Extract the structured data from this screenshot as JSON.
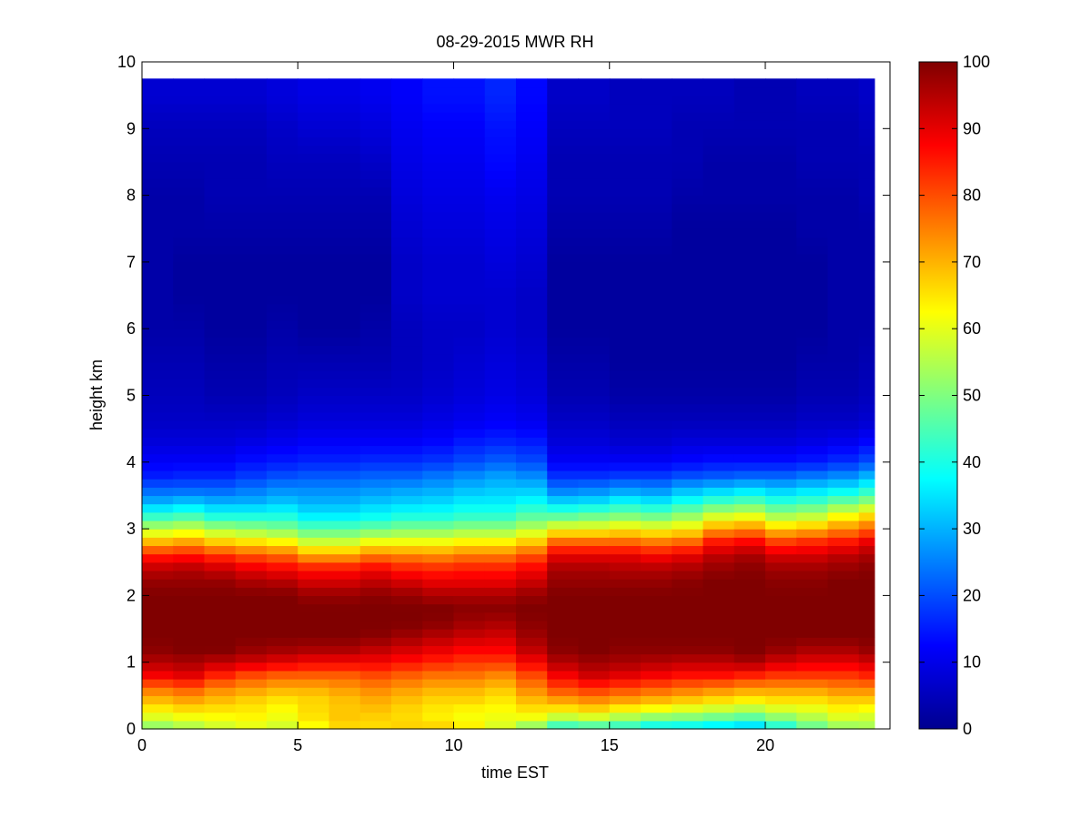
{
  "chart_data": {
    "type": "heatmap",
    "title": "08-29-2015 MWR RH",
    "xlabel": "time EST",
    "ylabel": "height km",
    "xlim": [
      0,
      24
    ],
    "ylim": [
      0,
      10
    ],
    "xticks": [
      0,
      5,
      10,
      15,
      20
    ],
    "yticks": [
      0,
      1,
      2,
      3,
      4,
      5,
      6,
      7,
      8,
      9,
      10
    ],
    "x_extent": [
      0,
      23.5
    ],
    "y_extent": [
      0,
      9.75
    ],
    "x_step": 1,
    "colormap": "jet",
    "colorbar": {
      "limits": [
        0,
        100
      ],
      "ticks": [
        0,
        10,
        20,
        30,
        40,
        50,
        60,
        70,
        80,
        90,
        100
      ]
    },
    "profile_heights_km": [
      0.0,
      0.1,
      0.25,
      0.4,
      0.6,
      0.8,
      1.0,
      1.2,
      1.4,
      1.6,
      1.8,
      2.0,
      2.2,
      2.4,
      2.6,
      2.8,
      3.0,
      3.2,
      3.4,
      3.6,
      3.8,
      4.0,
      4.3,
      4.6,
      5.0,
      5.5,
      6.0,
      6.5,
      7.0,
      7.5,
      8.0,
      8.5,
      9.0,
      9.5,
      9.75
    ],
    "profiles": [
      {
        "x": 0,
        "rh": [
          48,
          56,
          62,
          68,
          76,
          88,
          95,
          99,
          100,
          100,
          100,
          100,
          98,
          94,
          85,
          70,
          56,
          42,
          30,
          22,
          15,
          12,
          9,
          7,
          6,
          5,
          4,
          4,
          4,
          4,
          4,
          5,
          6,
          8,
          8
        ]
      },
      {
        "x": 1,
        "rh": [
          52,
          58,
          64,
          70,
          78,
          90,
          96,
          100,
          100,
          100,
          100,
          100,
          98,
          95,
          86,
          72,
          58,
          44,
          32,
          22,
          16,
          12,
          9,
          7,
          6,
          5,
          4,
          3,
          3,
          4,
          4,
          5,
          6,
          8,
          8
        ]
      },
      {
        "x": 2,
        "rh": [
          56,
          60,
          64,
          68,
          74,
          84,
          94,
          100,
          100,
          100,
          100,
          100,
          98,
          93,
          83,
          68,
          54,
          40,
          30,
          22,
          16,
          12,
          9,
          7,
          5,
          4,
          3,
          3,
          3,
          4,
          5,
          5,
          6,
          8,
          8
        ]
      },
      {
        "x": 3,
        "rh": [
          58,
          62,
          64,
          66,
          72,
          80,
          92,
          98,
          100,
          100,
          100,
          100,
          96,
          90,
          80,
          66,
          52,
          40,
          30,
          24,
          18,
          14,
          10,
          7,
          5,
          4,
          3,
          3,
          3,
          4,
          5,
          5,
          6,
          8,
          8
        ]
      },
      {
        "x": 4,
        "rh": [
          56,
          60,
          62,
          64,
          70,
          78,
          90,
          97,
          100,
          100,
          100,
          100,
          95,
          88,
          78,
          64,
          50,
          40,
          32,
          26,
          20,
          15,
          11,
          8,
          6,
          5,
          4,
          3,
          3,
          4,
          5,
          6,
          7,
          9,
          9
        ]
      },
      {
        "x": 5,
        "rh": [
          60,
          64,
          66,
          66,
          70,
          78,
          88,
          96,
          100,
          100,
          100,
          98,
          92,
          86,
          72,
          58,
          46,
          36,
          30,
          26,
          21,
          16,
          12,
          9,
          7,
          5,
          3,
          3,
          3,
          4,
          5,
          6,
          8,
          10,
          10
        ]
      },
      {
        "x": 6,
        "rh": [
          64,
          68,
          68,
          68,
          72,
          78,
          88,
          96,
          100,
          100,
          100,
          98,
          92,
          86,
          72,
          58,
          46,
          36,
          30,
          26,
          21,
          16,
          12,
          9,
          7,
          5,
          3,
          3,
          3,
          4,
          5,
          6,
          8,
          10,
          10
        ]
      },
      {
        "x": 7,
        "rh": [
          66,
          66,
          68,
          70,
          74,
          80,
          88,
          94,
          99,
          100,
          100,
          99,
          94,
          88,
          76,
          62,
          48,
          38,
          32,
          27,
          22,
          17,
          12,
          9,
          7,
          5,
          4,
          3,
          3,
          4,
          5,
          7,
          9,
          11,
          11
        ]
      },
      {
        "x": 8,
        "rh": [
          68,
          66,
          66,
          68,
          72,
          78,
          86,
          92,
          97,
          100,
          100,
          98,
          92,
          85,
          75,
          62,
          50,
          40,
          33,
          28,
          22,
          17,
          12,
          9,
          7,
          6,
          6,
          7,
          7,
          8,
          9,
          10,
          11,
          12,
          12
        ]
      },
      {
        "x": 9,
        "rh": [
          70,
          64,
          64,
          66,
          70,
          76,
          84,
          90,
          95,
          99,
          100,
          96,
          90,
          84,
          74,
          62,
          50,
          40,
          34,
          29,
          24,
          18,
          13,
          10,
          8,
          7,
          7,
          8,
          8,
          9,
          10,
          11,
          12,
          14,
          14
        ]
      },
      {
        "x": 10,
        "rh": [
          66,
          62,
          62,
          66,
          70,
          76,
          82,
          88,
          93,
          97,
          99,
          96,
          90,
          85,
          76,
          64,
          52,
          42,
          36,
          31,
          26,
          20,
          15,
          11,
          9,
          8,
          7,
          8,
          8,
          9,
          10,
          11,
          12,
          14,
          14
        ]
      },
      {
        "x": 11,
        "rh": [
          58,
          60,
          62,
          64,
          68,
          74,
          82,
          88,
          92,
          96,
          99,
          96,
          90,
          85,
          76,
          64,
          52,
          42,
          36,
          32,
          28,
          22,
          16,
          12,
          10,
          9,
          8,
          8,
          9,
          10,
          11,
          13,
          14,
          16,
          16
        ]
      },
      {
        "x": 12,
        "rh": [
          46,
          58,
          64,
          68,
          74,
          80,
          88,
          94,
          97,
          99,
          100,
          98,
          93,
          88,
          80,
          68,
          56,
          46,
          38,
          32,
          26,
          20,
          15,
          11,
          9,
          8,
          7,
          7,
          8,
          9,
          10,
          11,
          12,
          13,
          13
        ]
      },
      {
        "x": 13,
        "rh": [
          36,
          50,
          62,
          70,
          80,
          88,
          95,
          99,
          100,
          100,
          100,
          100,
          98,
          96,
          90,
          78,
          62,
          46,
          34,
          24,
          17,
          12,
          9,
          7,
          5,
          4,
          3,
          3,
          3,
          4,
          5,
          5,
          6,
          7,
          7
        ]
      },
      {
        "x": 14,
        "rh": [
          38,
          52,
          64,
          72,
          82,
          92,
          97,
          100,
          100,
          100,
          100,
          100,
          98,
          96,
          90,
          78,
          62,
          48,
          35,
          25,
          17,
          12,
          9,
          7,
          5,
          4,
          3,
          3,
          3,
          4,
          5,
          5,
          6,
          7,
          7
        ]
      },
      {
        "x": 15,
        "rh": [
          38,
          48,
          60,
          70,
          80,
          90,
          96,
          99,
          100,
          100,
          100,
          100,
          98,
          95,
          90,
          78,
          64,
          50,
          38,
          27,
          18,
          12,
          8,
          6,
          4,
          3,
          3,
          3,
          3,
          4,
          5,
          5,
          6,
          6,
          6
        ]
      },
      {
        "x": 16,
        "rh": [
          34,
          44,
          58,
          68,
          78,
          88,
          95,
          99,
          100,
          100,
          100,
          100,
          98,
          95,
          88,
          76,
          62,
          48,
          36,
          26,
          18,
          12,
          8,
          6,
          4,
          3,
          3,
          3,
          3,
          4,
          5,
          5,
          6,
          6,
          6
        ]
      },
      {
        "x": 17,
        "rh": [
          32,
          44,
          56,
          66,
          76,
          86,
          94,
          99,
          100,
          100,
          100,
          100,
          99,
          96,
          90,
          78,
          64,
          52,
          40,
          30,
          20,
          13,
          9,
          6,
          4,
          3,
          3,
          3,
          3,
          3,
          4,
          5,
          5,
          6,
          6
        ]
      },
      {
        "x": 18,
        "rh": [
          30,
          42,
          54,
          64,
          74,
          86,
          94,
          99,
          100,
          100,
          100,
          100,
          100,
          98,
          94,
          86,
          72,
          58,
          44,
          32,
          21,
          14,
          9,
          6,
          4,
          3,
          3,
          3,
          3,
          3,
          4,
          4,
          5,
          6,
          6
        ]
      },
      {
        "x": 19,
        "rh": [
          28,
          40,
          52,
          62,
          72,
          84,
          96,
          100,
          100,
          100,
          100,
          100,
          100,
          99,
          96,
          88,
          74,
          60,
          46,
          34,
          22,
          14,
          9,
          6,
          4,
          3,
          3,
          3,
          3,
          3,
          4,
          4,
          5,
          5,
          5
        ]
      },
      {
        "x": 20,
        "rh": [
          36,
          46,
          56,
          64,
          72,
          82,
          92,
          98,
          100,
          100,
          100,
          100,
          99,
          97,
          92,
          82,
          68,
          54,
          42,
          32,
          22,
          14,
          9,
          6,
          4,
          3,
          3,
          3,
          3,
          3,
          4,
          4,
          5,
          5,
          5
        ]
      },
      {
        "x": 21,
        "rh": [
          44,
          52,
          58,
          64,
          72,
          82,
          90,
          96,
          100,
          100,
          100,
          100,
          99,
          97,
          92,
          84,
          70,
          56,
          44,
          34,
          24,
          15,
          10,
          7,
          5,
          4,
          3,
          3,
          3,
          4,
          4,
          5,
          5,
          6,
          6
        ]
      },
      {
        "x": 22,
        "rh": [
          50,
          56,
          62,
          66,
          74,
          82,
          90,
          96,
          100,
          100,
          100,
          100,
          100,
          98,
          94,
          86,
          74,
          62,
          48,
          36,
          26,
          17,
          11,
          7,
          5,
          4,
          4,
          4,
          4,
          4,
          4,
          5,
          5,
          6,
          6
        ]
      },
      {
        "x": 23,
        "rh": [
          52,
          56,
          60,
          66,
          74,
          84,
          92,
          98,
          100,
          100,
          100,
          100,
          100,
          99,
          96,
          90,
          78,
          66,
          52,
          40,
          30,
          20,
          13,
          8,
          6,
          5,
          4,
          4,
          4,
          4,
          5,
          5,
          6,
          7,
          7
        ]
      }
    ]
  }
}
